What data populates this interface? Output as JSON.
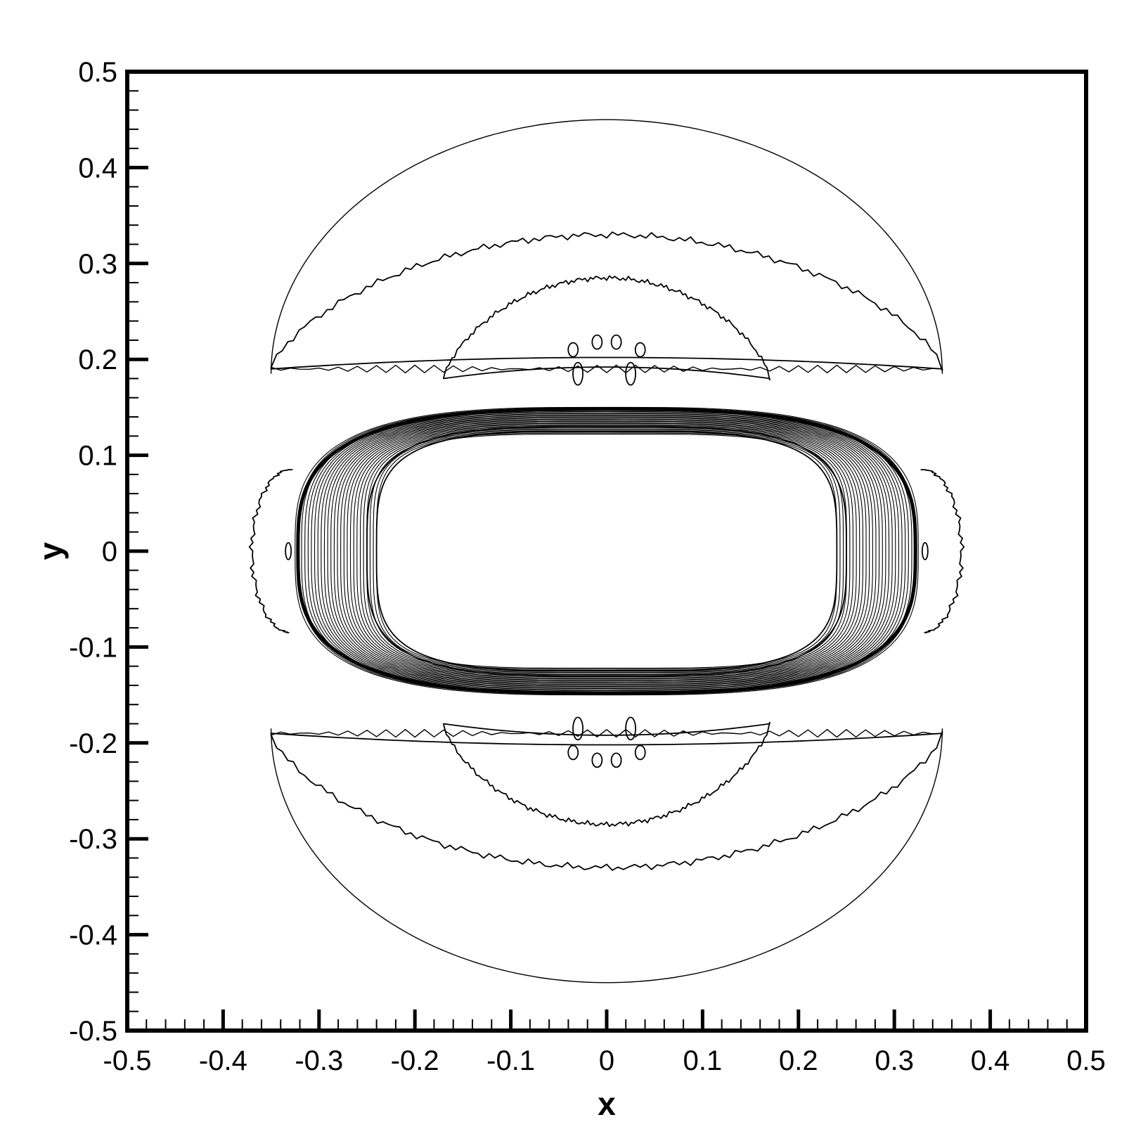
{
  "chart_data": {
    "type": "contour",
    "title": "",
    "xlabel": "x",
    "ylabel": "y",
    "xlim": [
      -0.5,
      0.5
    ],
    "ylim": [
      -0.5,
      0.5
    ],
    "x_ticks": [
      -0.5,
      -0.4,
      -0.3,
      -0.2,
      -0.1,
      0,
      0.1,
      0.2,
      0.3,
      0.4,
      0.5
    ],
    "y_ticks": [
      -0.5,
      -0.4,
      -0.3,
      -0.2,
      -0.1,
      0,
      0.1,
      0.2,
      0.3,
      0.4,
      0.5
    ],
    "x_tick_labels": [
      "-0.5",
      "-0.4",
      "-0.3",
      "-0.2",
      "-0.1",
      "0",
      "0.1",
      "0.2",
      "0.3",
      "0.4",
      "0.5"
    ],
    "y_tick_labels": [
      "-0.5",
      "-0.4",
      "-0.3",
      "-0.2",
      "-0.1",
      "0",
      "0.1",
      "0.2",
      "0.3",
      "0.4",
      "0.5"
    ],
    "minor_ticks_per_major": 5,
    "grid": false,
    "legend": "none",
    "contours": {
      "outer_arc": {
        "x_extent": [
          -0.35,
          0.35
        ],
        "y_extent": [
          0.19,
          0.45
        ]
      },
      "jagged_arc_upper": {
        "x_extent": [
          -0.35,
          0.35
        ],
        "y_extent": [
          0.19,
          0.33
        ]
      },
      "inner_arc_upper": {
        "x_extent": [
          -0.17,
          0.17
        ],
        "y_extent": [
          0.18,
          0.29
        ]
      },
      "shock_front": {
        "x_extent": [
          -0.325,
          0.325
        ],
        "y_extent": [
          -0.15,
          0.15
        ]
      },
      "inner_core": {
        "x_extent": [
          -0.24,
          0.24
        ],
        "y_extent": [
          -0.125,
          0.125
        ]
      },
      "side_lobes": {
        "x_extent": [
          -0.37,
          0.37
        ],
        "y_extent": [
          -0.08,
          0.08
        ]
      }
    },
    "colors": {
      "line": "#000000",
      "background": "#ffffff"
    }
  }
}
